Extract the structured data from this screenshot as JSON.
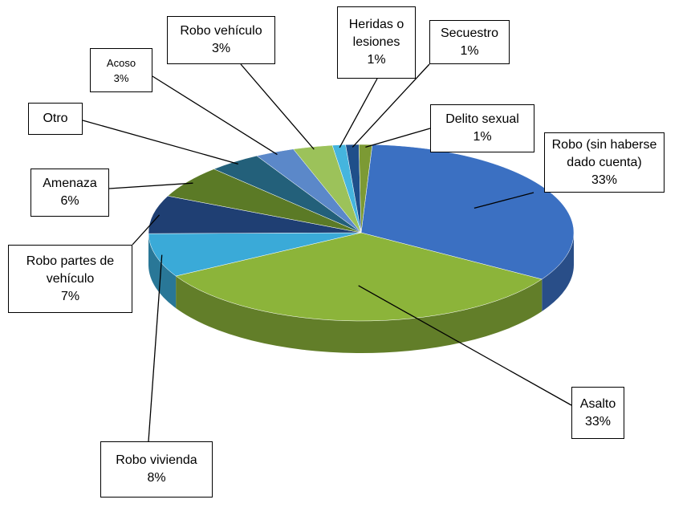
{
  "chart_data": {
    "type": "pie3d",
    "categories": [
      "Robo (sin haberse dado cuenta)",
      "Asalto",
      "Robo vivienda",
      "Robo partes de vehículo",
      "Amenaza",
      "Otro",
      "Acoso",
      "Robo vehículo",
      "Heridas o lesiones",
      "Secuestro",
      "Delito sexual"
    ],
    "values": [
      33,
      33,
      8,
      7,
      6,
      4,
      3,
      3,
      1,
      1,
      1
    ],
    "value_labels": [
      "33%",
      "33%",
      "8%",
      "7%",
      "6%",
      null,
      "3%",
      "3%",
      "1%",
      "1%",
      "1%"
    ],
    "colors": [
      "#3b70c2",
      "#8cb43a",
      "#3aaad8",
      "#1f3f73",
      "#5b7a26",
      "#23607a",
      "#5b88c9",
      "#9cc25a",
      "#45b5de",
      "#1f4f8a",
      "#7c9a34"
    ]
  }
}
